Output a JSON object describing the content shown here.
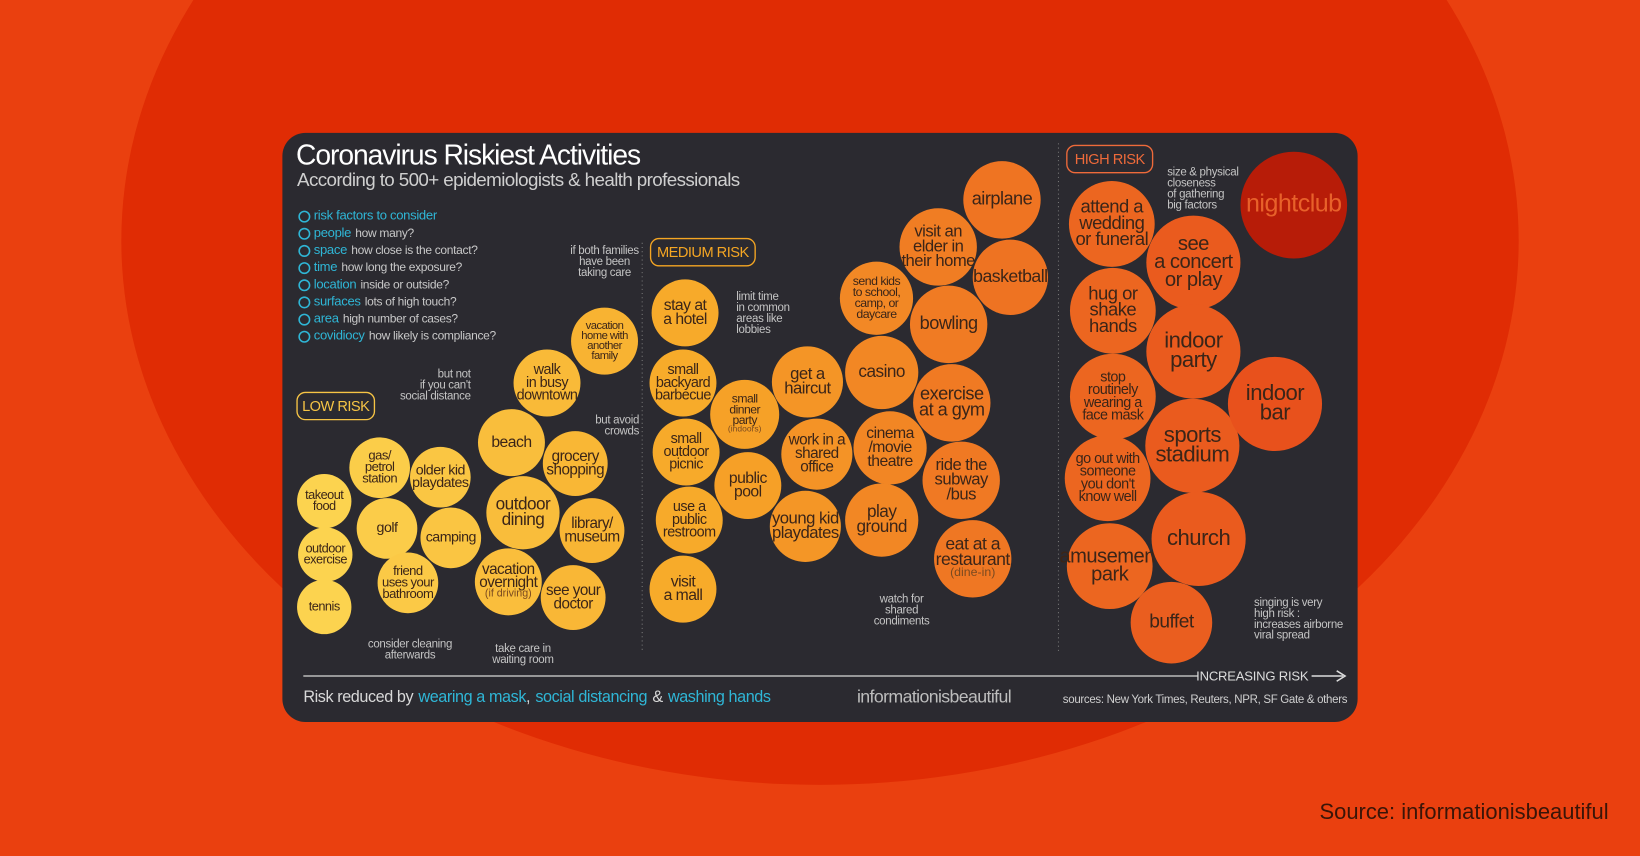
{
  "header": {
    "title": "Coronavirus Riskiest Activities",
    "subtitle": "According to 500+ epidemiologists & health professionals"
  },
  "legend": [
    {
      "term": "risk factors to consider"
    },
    {
      "term": "people",
      "description": "how many?"
    },
    {
      "term": "space",
      "description": "how close is the contact?"
    },
    {
      "term": "time",
      "description": "how long the exposure?"
    },
    {
      "term": "location",
      "description": "inside or outside?"
    },
    {
      "term": "surfaces",
      "description": "lots of high touch?"
    },
    {
      "term": "area",
      "description": "high number of cases?"
    },
    {
      "term": "covidiocy",
      "description": "how likely is compliance?"
    }
  ],
  "zones": [
    "LOW RISK",
    "MEDIUM RISK",
    "HIGH RISK"
  ],
  "activities": [
    {
      "lines": [
        "takeout",
        "food"
      ]
    },
    {
      "lines": [
        "outdoor",
        "exercise"
      ]
    },
    {
      "lines": [
        "tennis"
      ]
    },
    {
      "lines": [
        "gas/",
        "petrol",
        "station"
      ]
    },
    {
      "lines": [
        "golf"
      ]
    },
    {
      "lines": [
        "friend",
        "uses your",
        "bathroom"
      ]
    },
    {
      "lines": [
        "older kid",
        "playdates"
      ]
    },
    {
      "lines": [
        "camping"
      ]
    },
    {
      "lines": [
        "beach"
      ]
    },
    {
      "lines": [
        "walk",
        "in busy",
        "downtown"
      ]
    },
    {
      "lines": [
        "outdoor",
        "dining"
      ]
    },
    {
      "lines": [
        "grocery",
        "shopping"
      ]
    },
    {
      "lines": [
        "library/",
        "museum"
      ]
    },
    {
      "lines": [
        "vacation",
        "overnight"
      ],
      "note": "(if driving)"
    },
    {
      "lines": [
        "see your",
        "doctor"
      ]
    },
    {
      "lines": [
        "vacation",
        "home with",
        "another",
        "family"
      ]
    },
    {
      "lines": [
        "stay at",
        "a hotel"
      ]
    },
    {
      "lines": [
        "small",
        "backyard",
        "barbecue"
      ]
    },
    {
      "lines": [
        "small",
        "outdoor",
        "picnic"
      ]
    },
    {
      "lines": [
        "use a",
        "public",
        "restroom"
      ]
    },
    {
      "lines": [
        "visit",
        "a mall"
      ]
    },
    {
      "lines": [
        "small",
        "dinner",
        "party"
      ],
      "note": "(indoors)"
    },
    {
      "lines": [
        "public",
        "pool"
      ]
    },
    {
      "lines": [
        "get a",
        "haircut"
      ]
    },
    {
      "lines": [
        "work in a",
        "shared",
        "office"
      ]
    },
    {
      "lines": [
        "young kid",
        "playdates"
      ]
    },
    {
      "lines": [
        "send kids",
        "to school,",
        "camp, or",
        "daycare"
      ]
    },
    {
      "lines": [
        "casino"
      ]
    },
    {
      "lines": [
        "cinema",
        "/movie",
        "theatre"
      ]
    },
    {
      "lines": [
        "play",
        "ground"
      ]
    },
    {
      "lines": [
        "visit an",
        "elder in",
        "their home"
      ]
    },
    {
      "lines": [
        "bowling"
      ]
    },
    {
      "lines": [
        "exercise",
        "at a gym"
      ]
    },
    {
      "lines": [
        "ride the",
        "subway",
        "/bus"
      ]
    },
    {
      "lines": [
        "eat at a",
        "restaurant"
      ],
      "note": "(dine-in)"
    },
    {
      "lines": [
        "airplane"
      ]
    },
    {
      "lines": [
        "basketball"
      ]
    },
    {
      "lines": [
        "attend a",
        "wedding",
        "or funeral"
      ]
    },
    {
      "lines": [
        "hug or",
        "shake",
        "hands"
      ]
    },
    {
      "lines": [
        "stop",
        "routinely",
        "wearing a",
        "face mask"
      ]
    },
    {
      "lines": [
        "go out with",
        "someone",
        "you don't",
        "know well"
      ]
    },
    {
      "lines": [
        "amusement",
        "park"
      ]
    },
    {
      "lines": [
        "see",
        "a concert",
        "or play"
      ]
    },
    {
      "lines": [
        "indoor",
        "party"
      ]
    },
    {
      "lines": [
        "sports",
        "stadium"
      ]
    },
    {
      "lines": [
        "church"
      ]
    },
    {
      "lines": [
        "buffet"
      ]
    },
    {
      "lines": [
        "indoor",
        "bar"
      ]
    },
    {
      "lines": [
        "nightclub"
      ]
    }
  ],
  "annotations": [
    {
      "lines": [
        "but not",
        "if you can't",
        "social distance"
      ]
    },
    {
      "lines": [
        "but avoid",
        "crowds"
      ]
    },
    {
      "lines": [
        "if both families",
        "have been",
        "taking care"
      ]
    },
    {
      "lines": [
        "consider cleaning",
        "afterwards"
      ]
    },
    {
      "lines": [
        "take care in",
        "waiting room"
      ]
    },
    {
      "lines": [
        "limit time",
        "in common",
        "areas like",
        "lobbies"
      ]
    },
    {
      "lines": [
        "watch for",
        "shared",
        "condiments"
      ]
    },
    {
      "lines": [
        "size & physical",
        "closeness",
        "of gathering",
        "big factors"
      ]
    },
    {
      "lines": [
        "singing is very",
        "high risk :",
        "increases airborne",
        "viral spread"
      ]
    }
  ],
  "axis_label": "INCREASING RISK",
  "footer": {
    "lead": "Risk reduced by",
    "actions": [
      "wearing a mask",
      "social distancing",
      "washing hands"
    ],
    "separators": [
      ",",
      "&"
    ],
    "brand": "informationisbeautiful",
    "sources": "sources: New York Times, Reuters, NPR, SF Gate & others"
  },
  "source": "Source: informationisbeautiful"
}
